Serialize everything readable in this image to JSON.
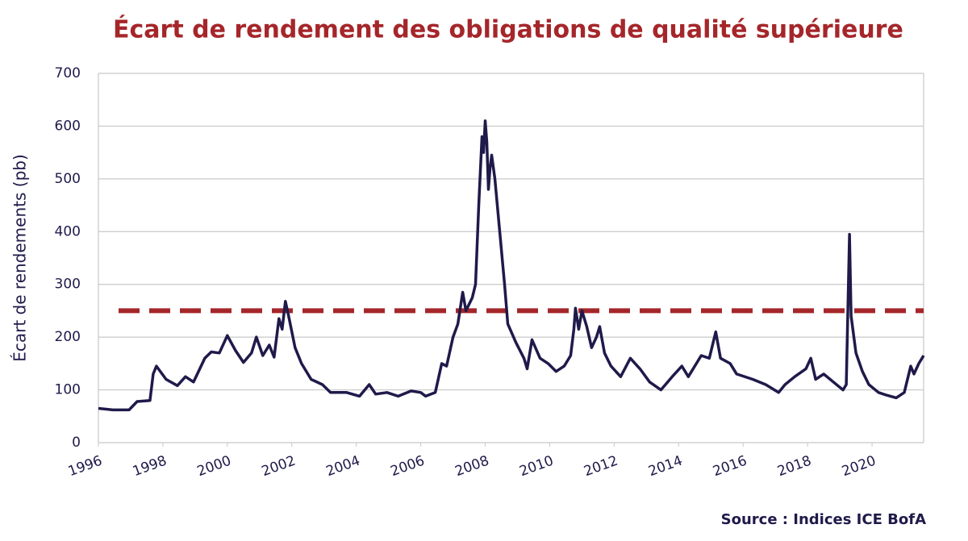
{
  "chart_data": {
    "type": "line",
    "title": "Écart de rendement des obligations de qualité supérieure",
    "y_label": "Écart de rendements (pb)",
    "source": "Source : Indices ICE BofA",
    "xlim": [
      1996,
      2021.6
    ],
    "xticks": [
      1996,
      1998,
      2000,
      2002,
      2004,
      2006,
      2008,
      2010,
      2012,
      2014,
      2016,
      2018,
      2020
    ],
    "ylim": [
      0,
      700
    ],
    "yticks": [
      0,
      100,
      200,
      300,
      400,
      500,
      600,
      700
    ],
    "grid": true,
    "reference_line": {
      "value": 250,
      "color": "#a5262a"
    },
    "series": [
      {
        "color": "#1f1a4a",
        "x": [
          1996.0,
          1996.45,
          1996.95,
          1997.2,
          1997.6,
          1997.7,
          1997.8,
          1998.1,
          1998.45,
          1998.7,
          1998.95,
          1999.3,
          1999.5,
          1999.75,
          2000.0,
          2000.25,
          2000.5,
          2000.75,
          2000.9,
          2001.1,
          2001.3,
          2001.45,
          2001.6,
          2001.7,
          2001.8,
          2001.9,
          2002.1,
          2002.3,
          2002.6,
          2002.95,
          2003.2,
          2003.7,
          2004.1,
          2004.4,
          2004.6,
          2004.95,
          2005.3,
          2005.7,
          2006.0,
          2006.15,
          2006.45,
          2006.65,
          2006.8,
          2007.0,
          2007.15,
          2007.3,
          2007.4,
          2007.6,
          2007.7,
          2007.8,
          2007.9,
          2007.95,
          2008.0,
          2008.05,
          2008.1,
          2008.15,
          2008.2,
          2008.3,
          2008.45,
          2008.6,
          2008.7,
          2008.95,
          2009.2,
          2009.3,
          2009.45,
          2009.7,
          2009.95,
          2010.2,
          2010.45,
          2010.65,
          2010.75,
          2010.8,
          2010.9,
          2011.0,
          2011.15,
          2011.3,
          2011.45,
          2011.55,
          2011.7,
          2011.9,
          2012.2,
          2012.5,
          2012.8,
          2013.1,
          2013.45,
          2013.8,
          2014.1,
          2014.3,
          2014.7,
          2014.95,
          2015.15,
          2015.3,
          2015.6,
          2015.8,
          2016.3,
          2016.7,
          2017.1,
          2017.3,
          2017.6,
          2017.95,
          2018.1,
          2018.25,
          2018.5,
          2018.8,
          2019.1,
          2019.2,
          2019.3,
          2019.35,
          2019.5,
          2019.7,
          2019.9,
          2020.2,
          2020.45,
          2020.75,
          2021.0,
          2021.2,
          2021.3,
          2021.45,
          2021.6
        ],
        "values": [
          65,
          62,
          62,
          78,
          80,
          130,
          145,
          120,
          108,
          125,
          115,
          160,
          172,
          170,
          203,
          175,
          152,
          170,
          200,
          165,
          185,
          162,
          235,
          215,
          268,
          240,
          180,
          150,
          120,
          110,
          95,
          95,
          88,
          110,
          92,
          95,
          88,
          98,
          95,
          88,
          95,
          150,
          145,
          200,
          225,
          285,
          250,
          275,
          300,
          450,
          580,
          550,
          610,
          570,
          480,
          520,
          545,
          500,
          400,
          300,
          225,
          190,
          160,
          140,
          195,
          160,
          150,
          135,
          145,
          165,
          215,
          255,
          215,
          250,
          220,
          180,
          200,
          220,
          170,
          145,
          125,
          160,
          140,
          115,
          100,
          125,
          145,
          125,
          165,
          160,
          210,
          160,
          150,
          130,
          120,
          110,
          95,
          110,
          125,
          140,
          160,
          120,
          130,
          115,
          100,
          110,
          395,
          240,
          170,
          135,
          110,
          95,
          90,
          85,
          95,
          145,
          130,
          150,
          165
        ]
      }
    ]
  }
}
